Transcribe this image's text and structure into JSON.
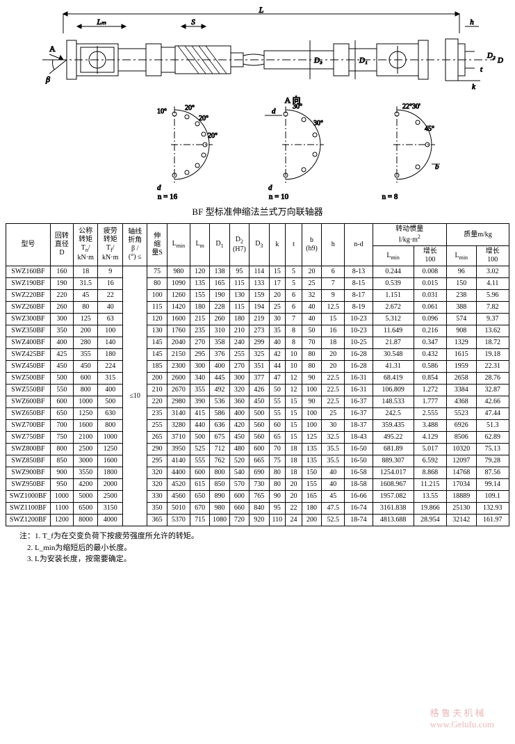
{
  "diagram": {
    "labels": {
      "L": "L",
      "Lm": "Lₘ",
      "S": "S",
      "A": "A",
      "beta": "β",
      "D1": "D₁",
      "D2": "D₂",
      "D3": "D₃",
      "D": "D",
      "h": "h",
      "t": "t",
      "k": "k",
      "d": "d",
      "b": "b",
      "Aview": "A 向",
      "ang10": "10°",
      "ang20": "20°",
      "ang30": "30°",
      "ang2230": "22°30'",
      "ang45": "45°",
      "n16": "n = 16",
      "n10": "n = 10",
      "n8": "n = 8"
    },
    "stroke": "#000000",
    "fill": "#ffffff",
    "hatch": "#000000"
  },
  "caption": "BF 型标准伸缩法兰式万向联轴器",
  "headers": {
    "model": "型号",
    "D": "回转直径 D",
    "Tn": "公称转矩 Tₙ/ kN·m",
    "Tf": "疲劳转矩 T_f/ kN·m",
    "beta": "轴线折角 β / (°) ≤",
    "S": "伸缩量S",
    "Lmin": "L_min",
    "Lm": "Lₘ",
    "D1": "D₁",
    "D2": "D₂ (H7)",
    "D3": "D₃",
    "k": "k",
    "t": "t",
    "b": "b (h9)",
    "h": "h",
    "nd": "n-d",
    "inertia": "转动惯量 I/kg·m²",
    "mass": "质量m/kg",
    "sub_lmin": "L_min",
    "sub_inc100": "增长 100"
  },
  "beta_value": "≤10",
  "rows": [
    {
      "model": "SWZ160BF",
      "D": "160",
      "Tn": "18",
      "Tf": "9",
      "S": "75",
      "Lmin": "980",
      "Lm": "120",
      "D1": "138",
      "D2": "95",
      "D3": "114",
      "k": "15",
      "t": "5",
      "b": "20",
      "h": "6",
      "nd": "8-13",
      "iL": "0.244",
      "i100": "0.008",
      "mL": "96",
      "m100": "3.02"
    },
    {
      "model": "SWZ190BF",
      "D": "190",
      "Tn": "31.5",
      "Tf": "16",
      "S": "80",
      "Lmin": "1090",
      "Lm": "135",
      "D1": "165",
      "D2": "115",
      "D3": "133",
      "k": "17",
      "t": "5",
      "b": "25",
      "h": "7",
      "nd": "8-15",
      "iL": "0.539",
      "i100": "0.015",
      "mL": "150",
      "m100": "4.11"
    },
    {
      "model": "SWZ220BF",
      "D": "220",
      "Tn": "45",
      "Tf": "22",
      "S": "100",
      "Lmin": "1260",
      "Lm": "155",
      "D1": "190",
      "D2": "130",
      "D3": "159",
      "k": "20",
      "t": "6",
      "b": "32",
      "h": "9",
      "nd": "8-17",
      "iL": "1.151",
      "i100": "0.031",
      "mL": "238",
      "m100": "5.96"
    },
    {
      "model": "SWZ260BF",
      "D": "260",
      "Tn": "80",
      "Tf": "40",
      "S": "115",
      "Lmin": "1420",
      "Lm": "180",
      "D1": "228",
      "D2": "115",
      "D3": "194",
      "k": "25",
      "t": "6",
      "b": "40",
      "h": "12.5",
      "nd": "8-19",
      "iL": "2.672",
      "i100": "0.061",
      "mL": "388",
      "m100": "7.82"
    },
    {
      "model": "SWZ300BF",
      "D": "300",
      "Tn": "125",
      "Tf": "63",
      "S": "120",
      "Lmin": "1600",
      "Lm": "215",
      "D1": "260",
      "D2": "180",
      "D3": "219",
      "k": "30",
      "t": "7",
      "b": "40",
      "h": "15",
      "nd": "10-23",
      "iL": "5.312",
      "i100": "0.096",
      "mL": "574",
      "m100": "9.37"
    },
    {
      "model": "SWZ350BF",
      "D": "350",
      "Tn": "200",
      "Tf": "100",
      "S": "130",
      "Lmin": "1760",
      "Lm": "235",
      "D1": "310",
      "D2": "210",
      "D3": "273",
      "k": "35",
      "t": "8",
      "b": "50",
      "h": "16",
      "nd": "10-23",
      "iL": "11.649",
      "i100": "0.216",
      "mL": "908",
      "m100": "13.62"
    },
    {
      "model": "SWZ400BF",
      "D": "400",
      "Tn": "280",
      "Tf": "140",
      "S": "145",
      "Lmin": "2040",
      "Lm": "270",
      "D1": "358",
      "D2": "240",
      "D3": "299",
      "k": "40",
      "t": "8",
      "b": "70",
      "h": "18",
      "nd": "10-25",
      "iL": "21.87",
      "i100": "0.347",
      "mL": "1329",
      "m100": "18.72"
    },
    {
      "model": "SWZ425BF",
      "D": "425",
      "Tn": "355",
      "Tf": "180",
      "S": "145",
      "Lmin": "2150",
      "Lm": "295",
      "D1": "376",
      "D2": "255",
      "D3": "325",
      "k": "42",
      "t": "10",
      "b": "80",
      "h": "20",
      "nd": "16-28",
      "iL": "30.548",
      "i100": "0.432",
      "mL": "1615",
      "m100": "19.18"
    },
    {
      "model": "SWZ450BF",
      "D": "450",
      "Tn": "450",
      "Tf": "224",
      "S": "185",
      "Lmin": "2300",
      "Lm": "300",
      "D1": "400",
      "D2": "270",
      "D3": "351",
      "k": "44",
      "t": "10",
      "b": "80",
      "h": "20",
      "nd": "16-28",
      "iL": "41.31",
      "i100": "0.586",
      "mL": "1959",
      "m100": "22.31"
    },
    {
      "model": "SWZ500BF",
      "D": "500",
      "Tn": "600",
      "Tf": "315",
      "S": "200",
      "Lmin": "2600",
      "Lm": "340",
      "D1": "445",
      "D2": "300",
      "D3": "377",
      "k": "47",
      "t": "12",
      "b": "90",
      "h": "22.5",
      "nd": "16-31",
      "iL": "68.419",
      "i100": "0.854",
      "mL": "2658",
      "m100": "28.76"
    },
    {
      "model": "SWZ550BF",
      "D": "550",
      "Tn": "800",
      "Tf": "400",
      "S": "210",
      "Lmin": "2670",
      "Lm": "355",
      "D1": "492",
      "D2": "320",
      "D3": "426",
      "k": "50",
      "t": "12",
      "b": "100",
      "h": "22.5",
      "nd": "16-31",
      "iL": "106.809",
      "i100": "1.272",
      "mL": "3384",
      "m100": "32.87"
    },
    {
      "model": "SWZ600BF",
      "D": "600",
      "Tn": "1000",
      "Tf": "500",
      "S": "220",
      "Lmin": "2980",
      "Lm": "390",
      "D1": "536",
      "D2": "360",
      "D3": "450",
      "k": "55",
      "t": "15",
      "b": "90",
      "h": "22.5",
      "nd": "16-37",
      "iL": "148.533",
      "i100": "1.777",
      "mL": "4368",
      "m100": "42.66"
    },
    {
      "model": "SWZ650BF",
      "D": "650",
      "Tn": "1250",
      "Tf": "630",
      "S": "235",
      "Lmin": "3140",
      "Lm": "415",
      "D1": "586",
      "D2": "400",
      "D3": "500",
      "k": "55",
      "t": "15",
      "b": "100",
      "h": "25",
      "nd": "16-37",
      "iL": "242.5",
      "i100": "2.555",
      "mL": "5523",
      "m100": "47.44"
    },
    {
      "model": "SWZ700BF",
      "D": "700",
      "Tn": "1600",
      "Tf": "800",
      "S": "255",
      "Lmin": "3280",
      "Lm": "440",
      "D1": "636",
      "D2": "420",
      "D3": "560",
      "k": "60",
      "t": "15",
      "b": "100",
      "h": "30",
      "nd": "18-37",
      "iL": "359.435",
      "i100": "3.488",
      "mL": "6926",
      "m100": "51.3"
    },
    {
      "model": "SWZ750BF",
      "D": "750",
      "Tn": "2100",
      "Tf": "1000",
      "S": "265",
      "Lmin": "3710",
      "Lm": "500",
      "D1": "675",
      "D2": "450",
      "D3": "560",
      "k": "65",
      "t": "15",
      "b": "125",
      "h": "32.5",
      "nd": "18-43",
      "iL": "495.22",
      "i100": "4.129",
      "mL": "8506",
      "m100": "62.89"
    },
    {
      "model": "SWZ800BF",
      "D": "800",
      "Tn": "2500",
      "Tf": "1250",
      "S": "290",
      "Lmin": "3950",
      "Lm": "525",
      "D1": "712",
      "D2": "480",
      "D3": "600",
      "k": "70",
      "t": "18",
      "b": "135",
      "h": "35.5",
      "nd": "16-50",
      "iL": "681.89",
      "i100": "5.017",
      "mL": "10320",
      "m100": "75.13"
    },
    {
      "model": "SWZ850BF",
      "D": "850",
      "Tn": "3000",
      "Tf": "1600",
      "S": "295",
      "Lmin": "4140",
      "Lm": "555",
      "D1": "762",
      "D2": "520",
      "D3": "665",
      "k": "75",
      "t": "18",
      "b": "135",
      "h": "35.5",
      "nd": "16-50",
      "iL": "889.307",
      "i100": "6.592",
      "mL": "12097",
      "m100": "79.28"
    },
    {
      "model": "SWZ900BF",
      "D": "900",
      "Tn": "3550",
      "Tf": "1800",
      "S": "320",
      "Lmin": "4400",
      "Lm": "600",
      "D1": "800",
      "D2": "540",
      "D3": "690",
      "k": "80",
      "t": "18",
      "b": "150",
      "h": "40",
      "nd": "16-58",
      "iL": "1254.017",
      "i100": "8.868",
      "mL": "14768",
      "m100": "87.56"
    },
    {
      "model": "SWZ950BF",
      "D": "950",
      "Tn": "4200",
      "Tf": "2000",
      "S": "320",
      "Lmin": "4520",
      "Lm": "615",
      "D1": "850",
      "D2": "570",
      "D3": "730",
      "k": "80",
      "t": "20",
      "b": "155",
      "h": "40",
      "nd": "18-58",
      "iL": "1608.967",
      "i100": "11.215",
      "mL": "17034",
      "m100": "99.14"
    },
    {
      "model": "SWZ1000BF",
      "D": "1000",
      "Tn": "5000",
      "Tf": "2500",
      "S": "330",
      "Lmin": "4560",
      "Lm": "650",
      "D1": "890",
      "D2": "600",
      "D3": "765",
      "k": "90",
      "t": "20",
      "b": "165",
      "h": "45",
      "nd": "16-66",
      "iL": "1957.082",
      "i100": "13.55",
      "mL": "18889",
      "m100": "109.1"
    },
    {
      "model": "SWZ1100BF",
      "D": "1100",
      "Tn": "6500",
      "Tf": "3150",
      "S": "350",
      "Lmin": "5010",
      "Lm": "670",
      "D1": "980",
      "D2": "660",
      "D3": "840",
      "k": "95",
      "t": "22",
      "b": "180",
      "h": "47.5",
      "nd": "16-74",
      "iL": "3161.838",
      "i100": "19.866",
      "mL": "25130",
      "m100": "132.93"
    },
    {
      "model": "SWZ1200BF",
      "D": "1200",
      "Tn": "8000",
      "Tf": "4000",
      "S": "365",
      "Lmin": "5370",
      "Lm": "715",
      "D1": "1080",
      "D2": "720",
      "D3": "920",
      "k": "110",
      "t": "24",
      "b": "200",
      "h": "52.5",
      "nd": "18-74",
      "iL": "4813.688",
      "i100": "28.954",
      "mL": "32142",
      "m100": "161.97"
    }
  ],
  "notes": {
    "prefix": "注：",
    "n1": "1. T_f为在交变负荷下按疲劳强度所允许的转矩。",
    "n2": "2. L_min为缩短后的最小长度。",
    "n3": "3. L为安装长度，按需要确定。"
  },
  "watermark": {
    "line1": "格 鲁 夫 机 械",
    "line2": "www.Gelufu.com"
  }
}
